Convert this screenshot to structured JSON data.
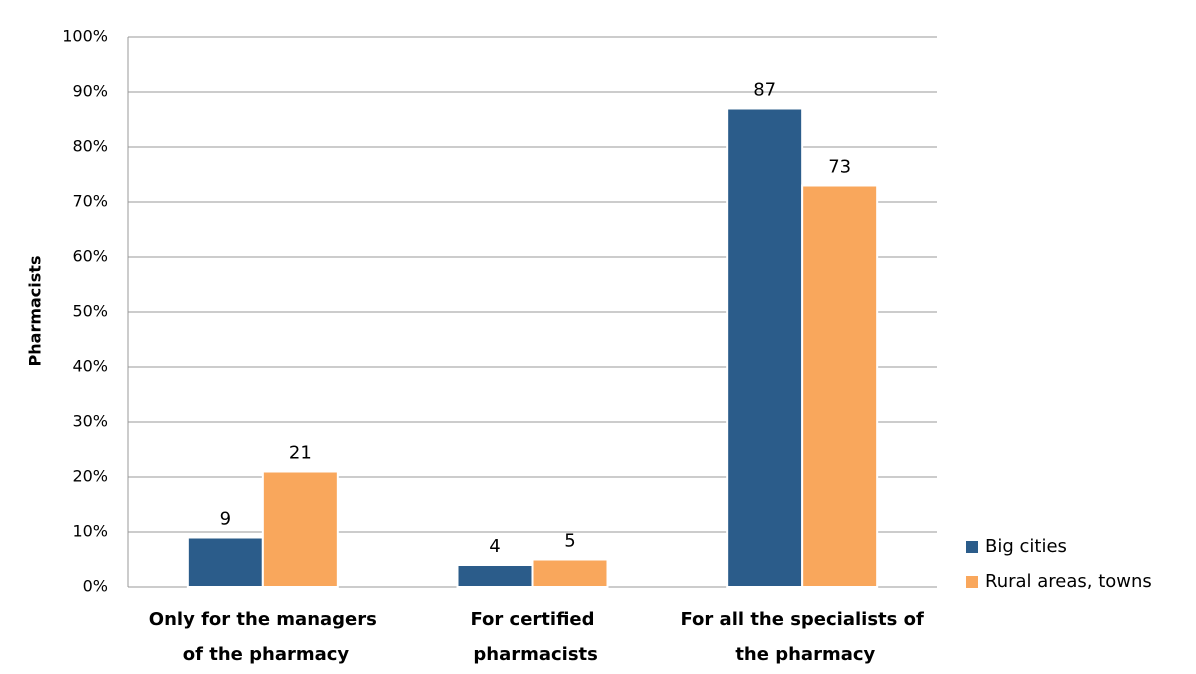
{
  "chart_data": {
    "type": "bar",
    "y_label": "Pharmacists",
    "categories": [
      "Only for the managers\nof the pharmacy",
      "For certified\npharmacists",
      "For all the specialists of\nthe pharmacy"
    ],
    "series": [
      {
        "name": "Big cities",
        "color": "#2b5c8a",
        "values": [
          9,
          4,
          87
        ]
      },
      {
        "name": "Rural areas, towns",
        "color": "#f9a75c",
        "values": [
          21,
          5,
          73
        ]
      }
    ],
    "ylim": [
      0,
      100
    ],
    "yticks": [
      {
        "value": 0,
        "label": "0%"
      },
      {
        "value": 10,
        "label": "10%"
      },
      {
        "value": 20,
        "label": "20%"
      },
      {
        "value": 30,
        "label": "30%"
      },
      {
        "value": 40,
        "label": "40%"
      },
      {
        "value": 50,
        "label": "50%"
      },
      {
        "value": 60,
        "label": "60%"
      },
      {
        "value": 70,
        "label": "70%"
      },
      {
        "value": 80,
        "label": "80%"
      },
      {
        "value": 90,
        "label": "90%"
      },
      {
        "value": 100,
        "label": "100%"
      }
    ],
    "grid": true,
    "legend": "right"
  }
}
